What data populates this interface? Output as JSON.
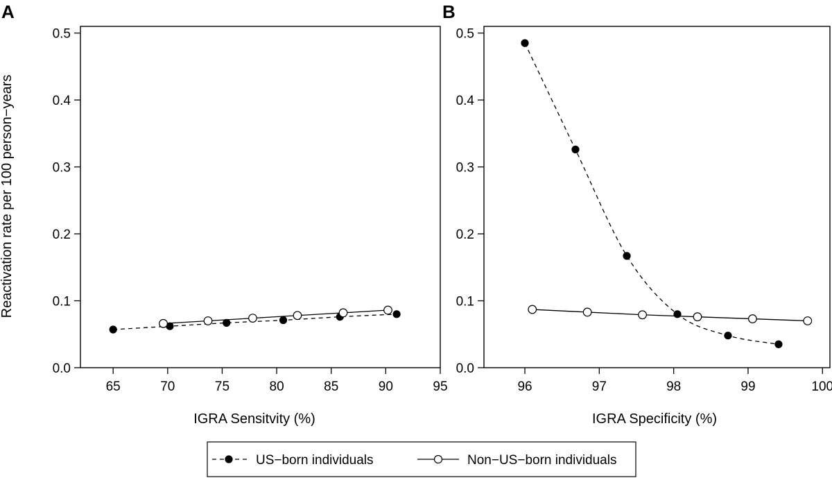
{
  "figure": {
    "ylabel": "Reactivation rate per 100 person−years"
  },
  "legend": {
    "items": [
      {
        "label": "US−born individuals",
        "marker": "filled",
        "line": "dashed"
      },
      {
        "label": "Non−US−born individuals",
        "marker": "open",
        "line": "solid"
      }
    ]
  },
  "chart_data": [
    {
      "panel": "A",
      "type": "line",
      "xlabel": "IGRA Sensitvity (%)",
      "ylabel": "Reactivation rate per 100 person−years",
      "xlim": [
        62,
        95
      ],
      "ylim": [
        0,
        0.51
      ],
      "xticks": [
        65,
        70,
        75,
        80,
        85,
        90,
        95
      ],
      "yticks": [
        0.0,
        0.1,
        0.2,
        0.3,
        0.4,
        0.5
      ],
      "ytick_labels": [
        "0.0",
        "0.1",
        "0.2",
        "0.3",
        "0.4",
        "0.5"
      ],
      "grid": false,
      "series": [
        {
          "name": "US−born individuals",
          "style": "dashed",
          "marker": "filled",
          "x": [
            65.0,
            70.2,
            75.4,
            80.6,
            85.8,
            91.0
          ],
          "y": [
            0.057,
            0.062,
            0.067,
            0.071,
            0.076,
            0.08
          ]
        },
        {
          "name": "Non−US−born individuals",
          "style": "solid",
          "marker": "open",
          "x": [
            69.6,
            73.7,
            77.8,
            81.9,
            86.1,
            90.2
          ],
          "y": [
            0.066,
            0.07,
            0.074,
            0.078,
            0.082,
            0.086
          ]
        }
      ]
    },
    {
      "panel": "B",
      "type": "line",
      "xlabel": "IGRA Specificity (%)",
      "ylabel": "",
      "xlim": [
        95.45,
        100.1
      ],
      "ylim": [
        0,
        0.51
      ],
      "xticks": [
        96,
        97,
        98,
        99,
        100
      ],
      "yticks": [
        0.0,
        0.1,
        0.2,
        0.3,
        0.4,
        0.5
      ],
      "ytick_labels": [
        "0.0",
        "0.1",
        "0.2",
        "0.3",
        "0.4",
        "0.5"
      ],
      "grid": false,
      "series": [
        {
          "name": "US−born individuals",
          "style": "dashed",
          "marker": "filled",
          "x": [
            96.0,
            96.68,
            97.37,
            98.05,
            98.73,
            99.41
          ],
          "y": [
            0.485,
            0.326,
            0.167,
            0.08,
            0.048,
            0.035
          ]
        },
        {
          "name": "Non−US−born individuals",
          "style": "solid",
          "marker": "open",
          "x": [
            96.1,
            96.84,
            97.58,
            98.32,
            99.06,
            99.8
          ],
          "y": [
            0.087,
            0.083,
            0.079,
            0.076,
            0.073,
            0.07
          ]
        }
      ]
    }
  ]
}
